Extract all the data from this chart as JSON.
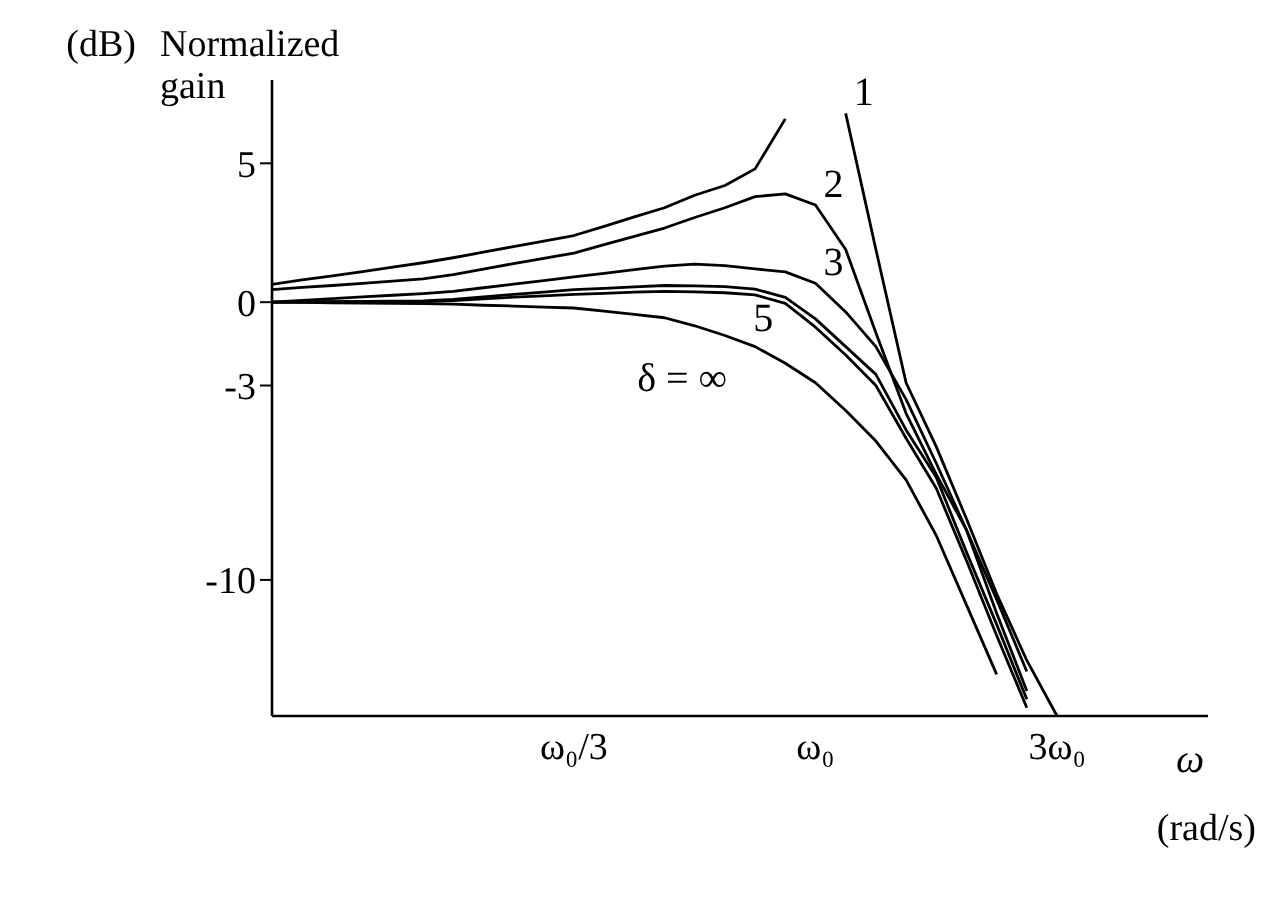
{
  "chart_data": {
    "type": "line",
    "ylabel": "Normalized gain",
    "xlabel": "ω",
    "annotations": [
      "(dB)",
      "(rad/s)"
    ],
    "categories": [
      null,
      null,
      null,
      null,
      null,
      null,
      null,
      null,
      null,
      null,
      "ω₀/3",
      null,
      null,
      null,
      null,
      null,
      null,
      null,
      "ω₀",
      null,
      null,
      null,
      null,
      null,
      null,
      null,
      "3ω₀",
      null,
      null,
      null,
      null,
      null
    ],
    "ylim": [
      -14.9,
      8
    ],
    "yticks": [
      5,
      0,
      -3,
      -10
    ],
    "grid": false,
    "legend": false,
    "marker": "none",
    "line_style": "solid",
    "series": [
      {
        "name": "1",
        "color": "#000000",
        "values": [
          0.64,
          0.8,
          0.95,
          1.1,
          1.26,
          1.42,
          1.6,
          1.8,
          2.0,
          2.2,
          2.4,
          2.73,
          3.07,
          3.4,
          3.85,
          4.2,
          4.8,
          6.6,
          null,
          6.8,
          1.9,
          -2.9,
          -5.2,
          -7.8,
          -10.5,
          -12.9,
          -14.9,
          null,
          null,
          null,
          null,
          null
        ]
      },
      {
        "name": "2",
        "color": "#000000",
        "values": [
          0.45,
          0.53,
          0.6,
          0.68,
          0.76,
          0.84,
          0.99,
          1.19,
          1.39,
          1.58,
          1.77,
          2.07,
          2.37,
          2.67,
          3.05,
          3.4,
          3.8,
          3.9,
          3.5,
          1.9,
          -1.1,
          -4.0,
          -6.2,
          -8.2,
          -10.7,
          -13.3,
          null,
          null,
          null,
          null,
          null,
          null
        ]
      },
      {
        "name": "3",
        "color": "#000000",
        "values": [
          0,
          0.06,
          0.13,
          0.19,
          0.25,
          0.31,
          0.39,
          0.52,
          0.65,
          0.78,
          0.91,
          1.04,
          1.17,
          1.3,
          1.37,
          1.32,
          1.2,
          1.09,
          0.68,
          -0.35,
          -1.6,
          -3.5,
          -5.8,
          -8.2,
          -11.2,
          -14.0,
          null,
          null,
          null,
          null,
          null,
          null
        ]
      },
      {
        "name": "5",
        "color": "#000000",
        "values": [
          0,
          0.01,
          0.02,
          0.03,
          0.04,
          0.05,
          0.1,
          0.19,
          0.28,
          0.36,
          0.45,
          0.5,
          0.55,
          0.6,
          0.59,
          0.56,
          0.47,
          0.17,
          -0.6,
          -1.6,
          -2.6,
          -4.6,
          -6.3,
          -9.0,
          -11.6,
          -14.3,
          null,
          null,
          null,
          null,
          null,
          null
        ]
      },
      {
        "color": "#000000",
        "values": [
          0,
          0,
          0.01,
          0.01,
          0.02,
          0.02,
          0.06,
          0.12,
          0.18,
          0.23,
          0.28,
          0.32,
          0.36,
          0.39,
          0.37,
          0.34,
          0.26,
          -0.04,
          -0.9,
          -1.9,
          -3.0,
          -4.9,
          -6.7,
          -9.3,
          -12.0,
          -14.6,
          null,
          null,
          null,
          null,
          null,
          null
        ]
      },
      {
        "name": "δ = ∞",
        "color": "#000000",
        "values": [
          0,
          -0.01,
          -0.02,
          -0.03,
          -0.04,
          -0.05,
          -0.07,
          -0.11,
          -0.14,
          -0.18,
          -0.21,
          -0.32,
          -0.44,
          -0.56,
          -0.85,
          -1.2,
          -1.6,
          -2.2,
          -2.9,
          -3.9,
          -5.0,
          -6.4,
          -8.4,
          -10.9,
          -13.4,
          null,
          null,
          null,
          null,
          null,
          null,
          null
        ]
      }
    ]
  }
}
